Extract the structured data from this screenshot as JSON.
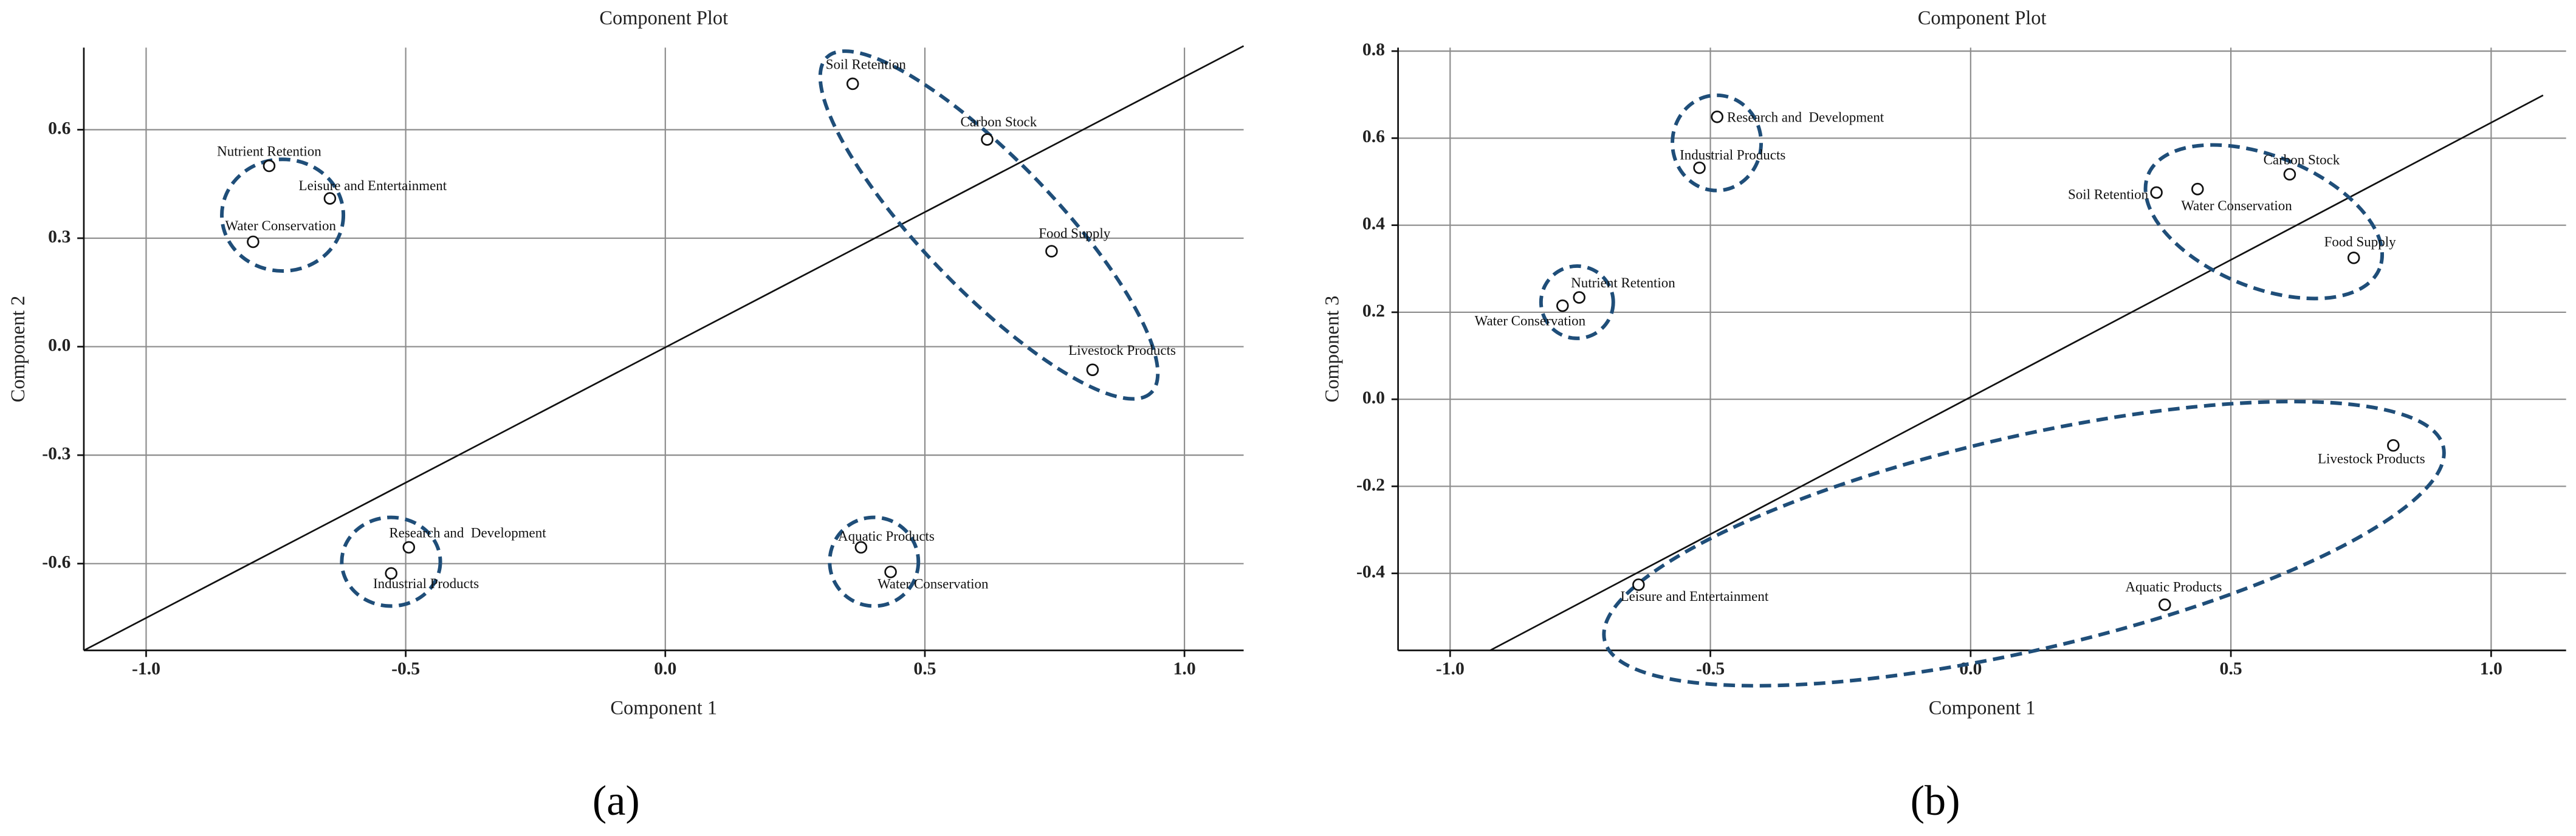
{
  "chart_data": [
    {
      "type": "scatter",
      "title": "Component Plot",
      "x_label": "Component 1",
      "y_label": "Component 2",
      "panel_label": "(a)",
      "xlim": [
        -1.12,
        1.114
      ],
      "ylim": [
        -0.84,
        0.827
      ],
      "xticks": [
        {
          "value": -1.0,
          "label": "-1.0"
        },
        -0.5,
        {
          "value": 0.0,
          "label": "0.0"
        },
        0.5,
        {
          "value": 1.0,
          "label": "1.0"
        }
      ],
      "yticks": [
        -0.6,
        -0.3,
        {
          "value": 0.0,
          "label": "0.0"
        },
        0.3,
        0.6
      ],
      "grid": true,
      "labels": [
        "Nutrient Retention",
        "Leisure and Entertainment",
        "Water Conservation",
        "Soil Retention",
        "Carbon Stock",
        "Food Supply",
        "Livestock Products",
        "Research and  Development",
        "Industrial Products",
        "Aquatic Products",
        "Water Conservation"
      ],
      "x": [
        -0.763,
        -0.646,
        -0.794,
        0.361,
        0.62,
        0.744,
        0.823,
        -0.494,
        -0.528,
        0.377,
        0.434
      ],
      "y": [
        0.5,
        0.41,
        0.29,
        0.727,
        0.573,
        0.264,
        -0.064,
        -0.555,
        -0.627,
        -0.555,
        -0.623
      ]
    },
    {
      "type": "scatter",
      "title": "Component Plot",
      "x_label": "Component 1",
      "y_label": "Component 3",
      "panel_label": "(b)",
      "xlim": [
        -1.1,
        1.144
      ],
      "ylim": [
        -0.577,
        0.808
      ],
      "xticks": [
        {
          "value": -1.0,
          "label": "-1.0"
        },
        -0.5,
        {
          "value": 0.0,
          "label": "0.0"
        },
        0.5,
        {
          "value": 1.0,
          "label": "1.0"
        }
      ],
      "yticks": [
        -0.4,
        -0.2,
        {
          "value": 0.0,
          "label": "0.0"
        },
        0.2,
        0.4,
        0.6,
        0.8
      ],
      "grid": true,
      "labels": [
        "Research and  Development",
        "Industrial Products",
        "Nutrient Retention",
        "Water Conservation",
        "Soil Retention",
        "Water Conservation",
        "Carbon Stock",
        "Food Supply",
        "Livestock Products",
        "Leisure and Entertainment",
        "Aquatic Products"
      ],
      "x": [
        -0.487,
        -0.521,
        -0.752,
        -0.784,
        0.357,
        0.436,
        0.613,
        0.736,
        0.812,
        -0.638,
        0.373
      ],
      "y": [
        0.649,
        0.532,
        0.234,
        0.215,
        0.475,
        0.483,
        0.517,
        0.325,
        -0.106,
        -0.426,
        -0.472
      ]
    }
  ]
}
